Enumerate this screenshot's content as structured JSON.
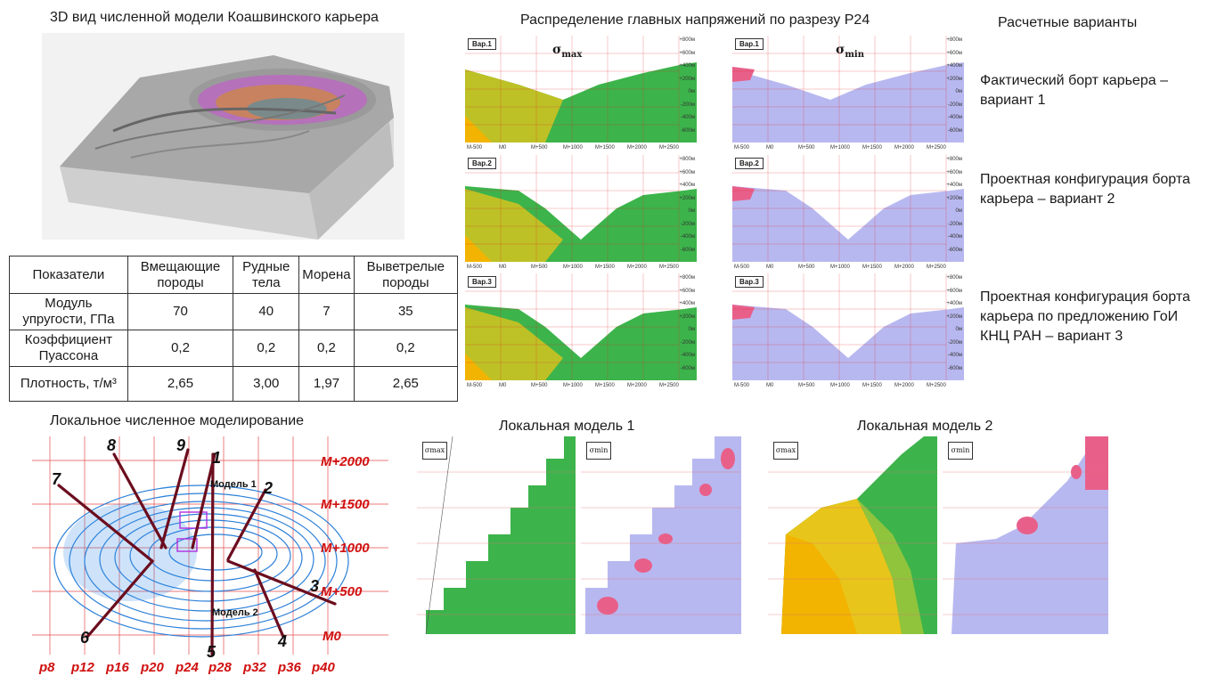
{
  "titles": {
    "model3d": "3D вид численной модели Коашвинского карьера",
    "stress": "Распределение главных напряжений по разрезу Р24",
    "variants": "Расчетные варианты",
    "local": "Локальное численное моделирование",
    "local_model_1": "Локальная модель 1",
    "local_model_2": "Локальная модель 2"
  },
  "table": {
    "headers": [
      "Показатели",
      "Вмещающие породы",
      "Рудные тела",
      "Морена",
      "Выветрелые породы"
    ],
    "rows": [
      [
        "Модуль упругости, ГПа",
        "70",
        "40",
        "7",
        "35"
      ],
      [
        "Коэффициент Пуассона",
        "0,2",
        "0,2",
        "0,2",
        "0,2"
      ],
      [
        "Плотность, т/м³",
        "2,65",
        "3,00",
        "1,97",
        "2,65"
      ]
    ]
  },
  "sigma": {
    "max_symbol": "σ",
    "max_sub": "max",
    "min_symbol": "σ",
    "min_sub": "min"
  },
  "variant_tags": [
    "Вар.1",
    "Вар.2",
    "Вар.3"
  ],
  "variants": [
    "Фактический борт карьера – вариант 1",
    "Проектная конфигурация борта карьера – вариант 2",
    "Проектная конфигурация борта карьера по предложению ГоИ КНЦ РАН – вариант 3"
  ],
  "section_axis": {
    "x_labels": [
      "М-500",
      "М0",
      "М+500",
      "М+1000",
      "М+1500",
      "М+2000",
      "М+2500"
    ],
    "y_labels": [
      "+800м",
      "+600м",
      "+400м",
      "+200м",
      "0м",
      "-200м",
      "-400м",
      "-600м"
    ]
  },
  "local_tags": {
    "max": "σmax",
    "min": "σmin"
  },
  "plan": {
    "row_labels": [
      "М+2000",
      "М+1500",
      "М+1000",
      "М+500",
      "М0"
    ],
    "col_labels": [
      "p8",
      "p12",
      "p16",
      "p20",
      "p24",
      "p28",
      "p32",
      "p36",
      "p40"
    ],
    "section_numbers": [
      "1",
      "2",
      "3",
      "4",
      "5",
      "6",
      "7",
      "8",
      "9"
    ],
    "model1_label": "Модель 1",
    "model2_label": "Модель 2"
  },
  "colors": {
    "grid_red": "#e02020",
    "section_line": "#6b0d1e",
    "sigma_max_green": "#3cb44b",
    "sigma_max_yellow": "#e8c51a",
    "sigma_min_blue": "#b8b8f0",
    "sigma_min_pink": "#e8608a"
  }
}
